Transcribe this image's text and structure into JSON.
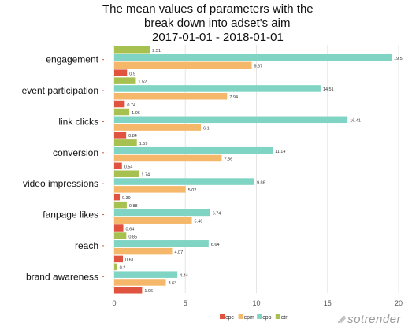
{
  "title": {
    "line1": "The mean values of parameters with the",
    "line2": "break down into adset's aim",
    "line3": "2017-01-01 - 2018-01-01"
  },
  "brand": "sotrender",
  "chart_data": {
    "type": "bar",
    "orientation": "horizontal",
    "categories": [
      "engagement",
      "event participation",
      "link clicks",
      "conversion",
      "video impressions",
      "fanpage likes",
      "reach",
      "brand awareness"
    ],
    "series": [
      {
        "name": "ctr",
        "color": "#a6c14f",
        "values": [
          2.51,
          1.52,
          1.06,
          1.59,
          1.74,
          0.88,
          0.85,
          0.2
        ]
      },
      {
        "name": "cpp",
        "color": "#7fd4c4",
        "values": [
          19.5,
          14.51,
          16.41,
          11.14,
          9.86,
          6.74,
          6.64,
          4.44
        ]
      },
      {
        "name": "cpm",
        "color": "#f5b86a",
        "values": [
          9.67,
          7.94,
          6.1,
          7.56,
          5.02,
          5.46,
          4.07,
          3.63
        ]
      },
      {
        "name": "cpc",
        "color": "#e0533f",
        "values": [
          0.9,
          0.74,
          0.84,
          0.54,
          0.39,
          0.64,
          0.61,
          1.96
        ]
      }
    ],
    "legend_order": [
      "cpc",
      "cpm",
      "cpp",
      "ctr"
    ],
    "xlim": [
      0,
      20
    ],
    "xticks": [
      0,
      5,
      10,
      15,
      20
    ],
    "grid": true,
    "legend_position": "bottom"
  }
}
